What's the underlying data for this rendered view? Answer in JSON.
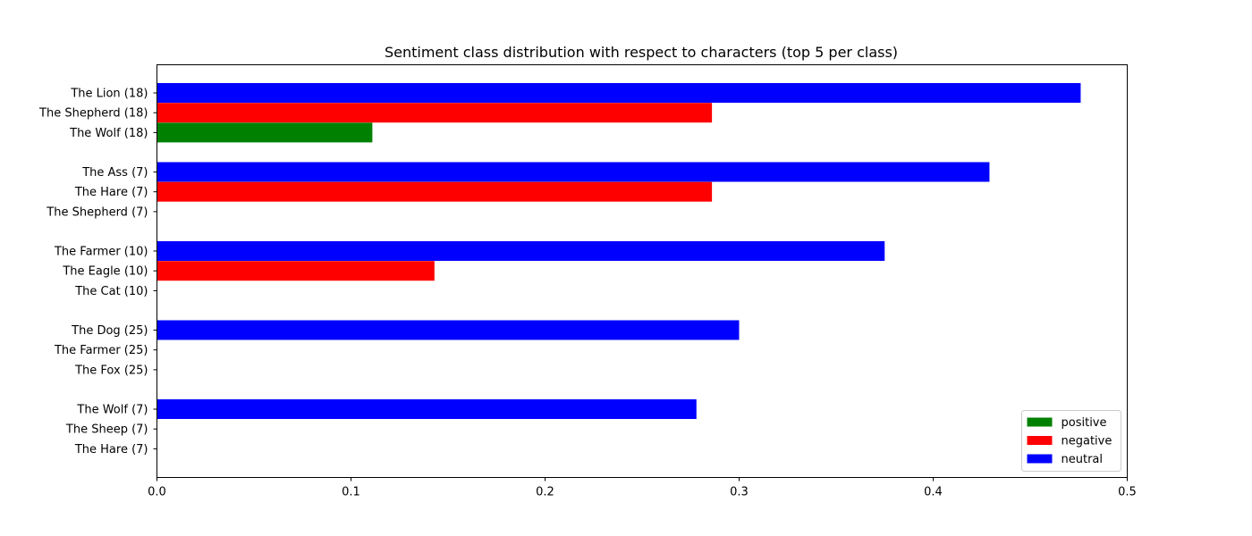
{
  "chart_data": {
    "type": "bar",
    "orientation": "horizontal",
    "title": "Sentiment class distribution with respect to characters (top 5 per class)",
    "xlabel": "",
    "ylabel": "",
    "xlim": [
      0,
      0.5
    ],
    "xticks": [
      0.0,
      0.1,
      0.2,
      0.3,
      0.4,
      0.5
    ],
    "xtick_labels": [
      "0.0",
      "0.1",
      "0.2",
      "0.3",
      "0.4",
      "0.5"
    ],
    "grid": false,
    "legend_position": "lower-right",
    "series_colors": {
      "positive": "#008000",
      "negative": "#ff0000",
      "neutral": "#0000ff"
    },
    "legend": [
      {
        "name": "positive",
        "color": "#008000"
      },
      {
        "name": "negative",
        "color": "#ff0000"
      },
      {
        "name": "neutral",
        "color": "#0000ff"
      }
    ],
    "groups": [
      {
        "bars": [
          {
            "label": "The Lion (18)",
            "series": "neutral",
            "value": 0.476
          },
          {
            "label": "The Shepherd (18)",
            "series": "negative",
            "value": 0.286
          },
          {
            "label": "The Wolf (18)",
            "series": "positive",
            "value": 0.111
          }
        ]
      },
      {
        "bars": [
          {
            "label": "The Ass (7)",
            "series": "neutral",
            "value": 0.429
          },
          {
            "label": "The Hare (7)",
            "series": "negative",
            "value": 0.286
          },
          {
            "label": "The Shepherd (7)",
            "series": "positive",
            "value": 0.0
          }
        ]
      },
      {
        "bars": [
          {
            "label": "The Farmer (10)",
            "series": "neutral",
            "value": 0.375
          },
          {
            "label": "The Eagle (10)",
            "series": "negative",
            "value": 0.143
          },
          {
            "label": "The Cat (10)",
            "series": "positive",
            "value": 0.0
          }
        ]
      },
      {
        "bars": [
          {
            "label": "The Dog (25)",
            "series": "neutral",
            "value": 0.3
          },
          {
            "label": "The Farmer (25)",
            "series": "negative",
            "value": 0.0
          },
          {
            "label": "The Fox (25)",
            "series": "positive",
            "value": 0.0
          }
        ]
      },
      {
        "bars": [
          {
            "label": "The Wolf (7)",
            "series": "neutral",
            "value": 0.278
          },
          {
            "label": "The Sheep (7)",
            "series": "negative",
            "value": 0.0
          },
          {
            "label": "The Hare (7)",
            "series": "positive",
            "value": 0.0
          }
        ]
      }
    ]
  }
}
